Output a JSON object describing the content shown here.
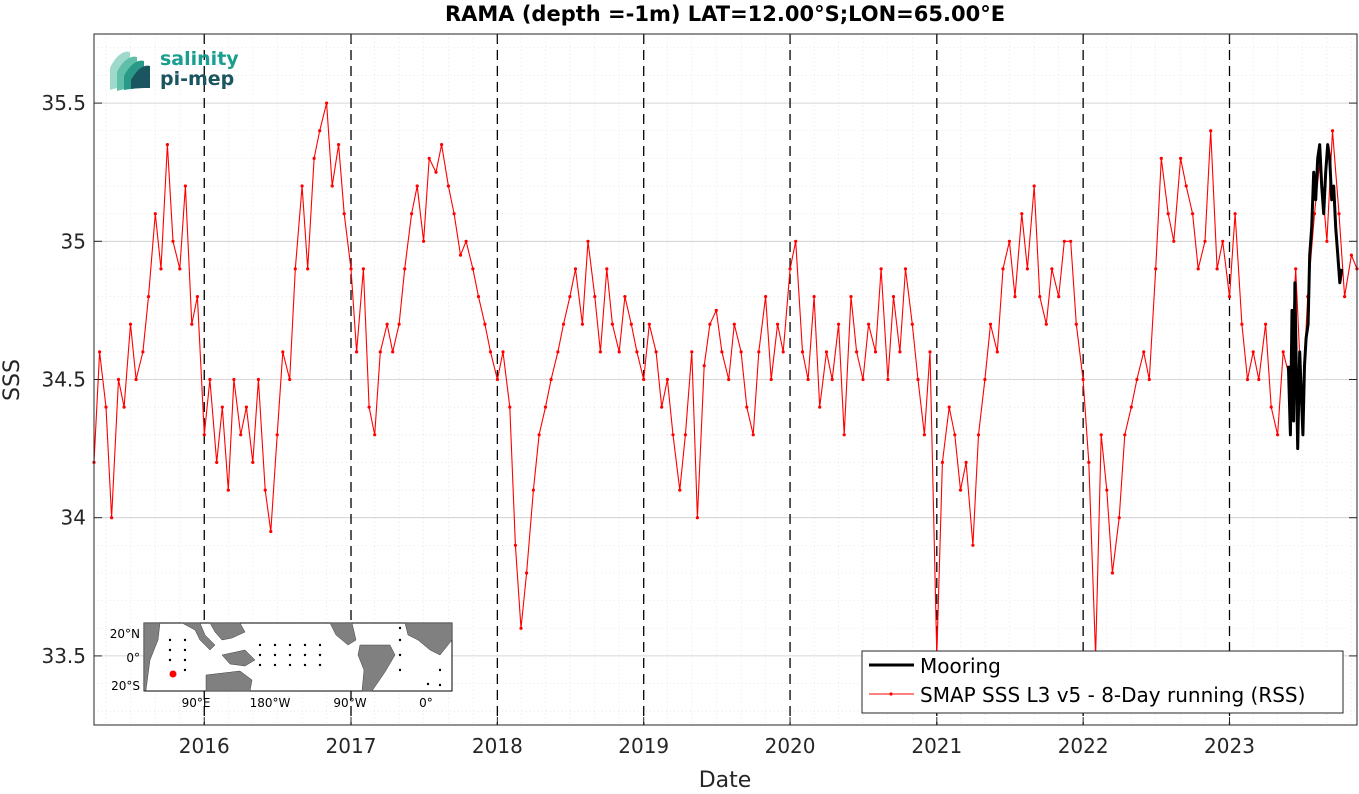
{
  "chart_data": {
    "type": "line",
    "title": "RAMA (depth =-1m) LAT=12.00°S;LON=65.00°E",
    "xlabel": "Date",
    "ylabel": "SSS",
    "xlim": [
      "2015-04-01",
      "2023-11-15"
    ],
    "ylim": [
      33.25,
      35.75
    ],
    "x_ticks": [
      {
        "date": "2016-01-01",
        "label": "2016"
      },
      {
        "date": "2017-01-01",
        "label": "2017"
      },
      {
        "date": "2018-01-01",
        "label": "2018"
      },
      {
        "date": "2019-01-01",
        "label": "2019"
      },
      {
        "date": "2020-01-01",
        "label": "2020"
      },
      {
        "date": "2021-01-01",
        "label": "2021"
      },
      {
        "date": "2022-01-01",
        "label": "2022"
      },
      {
        "date": "2023-01-01",
        "label": "2023"
      }
    ],
    "y_ticks": [
      {
        "value": 33.5,
        "label": "33.5"
      },
      {
        "value": 34,
        "label": "34"
      },
      {
        "value": 34.5,
        "label": "34.5"
      },
      {
        "value": 35,
        "label": "35"
      },
      {
        "value": 35.5,
        "label": "35.5"
      }
    ],
    "grid": true,
    "vertical_year_lines": [
      "2016-01-01",
      "2017-01-01",
      "2018-01-01",
      "2019-01-01",
      "2020-01-01",
      "2021-01-01",
      "2022-01-01",
      "2023-01-01"
    ],
    "legend_position": "bottom-right",
    "series": [
      {
        "name": "Mooring",
        "color": "#000000",
        "x": [
          "2023-05-28",
          "2023-06-02",
          "2023-06-06",
          "2023-06-10",
          "2023-06-13",
          "2023-06-17",
          "2023-06-20",
          "2023-06-25",
          "2023-06-29",
          "2023-07-03",
          "2023-07-07",
          "2023-07-11",
          "2023-07-16",
          "2023-07-20",
          "2023-07-25",
          "2023-07-30",
          "2023-08-04",
          "2023-08-09",
          "2023-08-14",
          "2023-08-19",
          "2023-08-24",
          "2023-08-29",
          "2023-09-03",
          "2023-09-08",
          "2023-09-13",
          "2023-09-18",
          "2023-09-23",
          "2023-09-28",
          "2023-10-03",
          "2023-10-08"
        ],
        "y": [
          34.55,
          34.3,
          34.75,
          34.35,
          34.85,
          34.5,
          34.25,
          34.6,
          34.45,
          34.3,
          34.55,
          34.65,
          34.7,
          34.95,
          35.05,
          35.25,
          35.15,
          35.3,
          35.35,
          35.2,
          35.1,
          35.25,
          35.35,
          35.3,
          35.15,
          35.2,
          35.05,
          34.95,
          34.85,
          34.9
        ]
      },
      {
        "name": "SMAP SSS L3 v5 - 8-Day running (RSS)",
        "color": "#ff0000",
        "x": [
          "2015-04-01",
          "2015-04-15",
          "2015-05-01",
          "2015-05-15",
          "2015-06-01",
          "2015-06-15",
          "2015-07-01",
          "2015-07-15",
          "2015-08-01",
          "2015-08-15",
          "2015-09-01",
          "2015-09-15",
          "2015-10-01",
          "2015-10-15",
          "2015-11-01",
          "2015-11-15",
          "2015-12-01",
          "2015-12-15",
          "2016-01-01",
          "2016-01-15",
          "2016-02-01",
          "2016-02-15",
          "2016-03-01",
          "2016-03-15",
          "2016-04-01",
          "2016-04-15",
          "2016-05-01",
          "2016-05-15",
          "2016-06-01",
          "2016-06-15",
          "2016-07-01",
          "2016-07-15",
          "2016-08-01",
          "2016-08-15",
          "2016-09-01",
          "2016-09-15",
          "2016-10-01",
          "2016-10-15",
          "2016-11-01",
          "2016-11-15",
          "2016-12-01",
          "2016-12-15",
          "2017-01-01",
          "2017-01-15",
          "2017-02-01",
          "2017-02-15",
          "2017-03-01",
          "2017-03-15",
          "2017-04-01",
          "2017-04-15",
          "2017-05-01",
          "2017-05-15",
          "2017-06-01",
          "2017-06-15",
          "2017-07-01",
          "2017-07-15",
          "2017-08-01",
          "2017-08-15",
          "2017-09-01",
          "2017-09-15",
          "2017-10-01",
          "2017-10-15",
          "2017-11-01",
          "2017-11-15",
          "2017-12-01",
          "2017-12-15",
          "2018-01-01",
          "2018-01-15",
          "2018-02-01",
          "2018-02-15",
          "2018-03-01",
          "2018-03-15",
          "2018-04-01",
          "2018-04-15",
          "2018-05-01",
          "2018-05-15",
          "2018-06-01",
          "2018-06-15",
          "2018-07-01",
          "2018-07-15",
          "2018-08-01",
          "2018-08-15",
          "2018-09-01",
          "2018-09-15",
          "2018-10-01",
          "2018-10-15",
          "2018-11-01",
          "2018-11-15",
          "2018-12-01",
          "2018-12-15",
          "2019-01-01",
          "2019-01-15",
          "2019-02-01",
          "2019-02-15",
          "2019-03-01",
          "2019-03-15",
          "2019-04-01",
          "2019-04-15",
          "2019-05-01",
          "2019-05-15",
          "2019-06-01",
          "2019-06-15",
          "2019-07-01",
          "2019-07-15",
          "2019-08-01",
          "2019-08-15",
          "2019-09-01",
          "2019-09-15",
          "2019-10-01",
          "2019-10-15",
          "2019-11-01",
          "2019-11-15",
          "2019-12-01",
          "2019-12-15",
          "2020-01-01",
          "2020-01-15",
          "2020-02-01",
          "2020-02-15",
          "2020-03-01",
          "2020-03-15",
          "2020-04-01",
          "2020-04-15",
          "2020-05-01",
          "2020-05-15",
          "2020-06-01",
          "2020-06-15",
          "2020-07-01",
          "2020-07-15",
          "2020-08-01",
          "2020-08-15",
          "2020-09-01",
          "2020-09-15",
          "2020-10-01",
          "2020-10-15",
          "2020-11-01",
          "2020-11-15",
          "2020-12-01",
          "2020-12-15",
          "2021-01-01",
          "2021-01-15",
          "2021-02-01",
          "2021-02-15",
          "2021-03-01",
          "2021-03-15",
          "2021-04-01",
          "2021-04-15",
          "2021-05-01",
          "2021-05-15",
          "2021-06-01",
          "2021-06-15",
          "2021-07-01",
          "2021-07-15",
          "2021-08-01",
          "2021-08-15",
          "2021-09-01",
          "2021-09-15",
          "2021-10-01",
          "2021-10-15",
          "2021-11-01",
          "2021-11-15",
          "2021-12-01",
          "2021-12-15",
          "2022-01-01",
          "2022-01-15",
          "2022-02-01",
          "2022-02-15",
          "2022-03-01",
          "2022-03-15",
          "2022-04-01",
          "2022-04-15",
          "2022-05-01",
          "2022-05-15",
          "2022-06-01",
          "2022-06-15",
          "2022-07-01",
          "2022-07-15",
          "2022-08-01",
          "2022-08-15",
          "2022-09-01",
          "2022-09-15",
          "2022-10-01",
          "2022-10-15",
          "2022-11-01",
          "2022-11-15",
          "2022-12-01",
          "2022-12-15",
          "2023-01-01",
          "2023-01-15",
          "2023-02-01",
          "2023-02-15",
          "2023-03-01",
          "2023-03-15",
          "2023-04-01",
          "2023-04-15",
          "2023-05-01",
          "2023-05-15",
          "2023-06-01",
          "2023-06-15",
          "2023-07-01",
          "2023-07-15",
          "2023-08-01",
          "2023-08-15",
          "2023-09-01",
          "2023-09-15",
          "2023-10-01",
          "2023-10-15",
          "2023-11-01",
          "2023-11-15"
        ],
        "y": [
          34.2,
          34.6,
          34.4,
          34.0,
          34.5,
          34.4,
          34.7,
          34.5,
          34.6,
          34.8,
          35.1,
          34.9,
          35.35,
          35.0,
          34.9,
          35.2,
          34.7,
          34.8,
          34.3,
          34.5,
          34.2,
          34.4,
          34.1,
          34.5,
          34.3,
          34.4,
          34.2,
          34.5,
          34.1,
          33.95,
          34.3,
          34.6,
          34.5,
          34.9,
          35.2,
          34.9,
          35.3,
          35.4,
          35.5,
          35.2,
          35.35,
          35.1,
          34.9,
          34.6,
          34.9,
          34.4,
          34.3,
          34.6,
          34.7,
          34.6,
          34.7,
          34.9,
          35.1,
          35.2,
          35.0,
          35.3,
          35.25,
          35.35,
          35.2,
          35.1,
          34.95,
          35.0,
          34.9,
          34.8,
          34.7,
          34.6,
          34.5,
          34.6,
          34.4,
          33.9,
          33.6,
          33.8,
          34.1,
          34.3,
          34.4,
          34.5,
          34.6,
          34.7,
          34.8,
          34.9,
          34.7,
          35.0,
          34.8,
          34.6,
          34.9,
          34.7,
          34.6,
          34.8,
          34.7,
          34.6,
          34.5,
          34.7,
          34.6,
          34.4,
          34.5,
          34.3,
          34.1,
          34.3,
          34.6,
          34.0,
          34.55,
          34.7,
          34.75,
          34.6,
          34.5,
          34.7,
          34.6,
          34.4,
          34.3,
          34.6,
          34.8,
          34.5,
          34.7,
          34.6,
          34.9,
          35.0,
          34.6,
          34.5,
          34.8,
          34.4,
          34.6,
          34.5,
          34.7,
          34.3,
          34.8,
          34.6,
          34.5,
          34.7,
          34.6,
          34.9,
          34.5,
          34.8,
          34.6,
          34.9,
          34.7,
          34.5,
          34.3,
          34.6,
          33.5,
          34.2,
          34.4,
          34.3,
          34.1,
          34.2,
          33.9,
          34.3,
          34.5,
          34.7,
          34.6,
          34.9,
          35.0,
          34.8,
          35.1,
          34.9,
          35.2,
          34.8,
          34.7,
          34.9,
          34.8,
          35.0,
          35.0,
          34.7,
          34.5,
          34.2,
          33.5,
          34.3,
          34.1,
          33.8,
          34.0,
          34.3,
          34.4,
          34.5,
          34.6,
          34.5,
          34.9,
          35.3,
          35.1,
          35.0,
          35.3,
          35.2,
          35.1,
          34.9,
          35.0,
          35.4,
          34.9,
          35.0,
          34.8,
          35.1,
          34.7,
          34.5,
          34.6,
          34.5,
          34.7,
          34.4,
          34.3,
          34.6,
          34.5,
          34.9,
          34.4,
          34.8,
          35.1,
          35.3,
          35.0,
          35.4,
          35.1,
          34.8,
          34.95,
          34.9
        ]
      }
    ]
  },
  "inset_map": {
    "lon_labels": [
      "90°E",
      "180°W",
      "90°W",
      "0°"
    ],
    "lat_labels": [
      "20°N",
      "0°",
      "20°S"
    ],
    "ocean_color": "#ffffff",
    "land_color": "#808080"
  },
  "logo": {
    "line1": "salinity",
    "line2": "pi-mep",
    "color_line1": "#1a9e8f",
    "color_line2": "#1a5560"
  }
}
